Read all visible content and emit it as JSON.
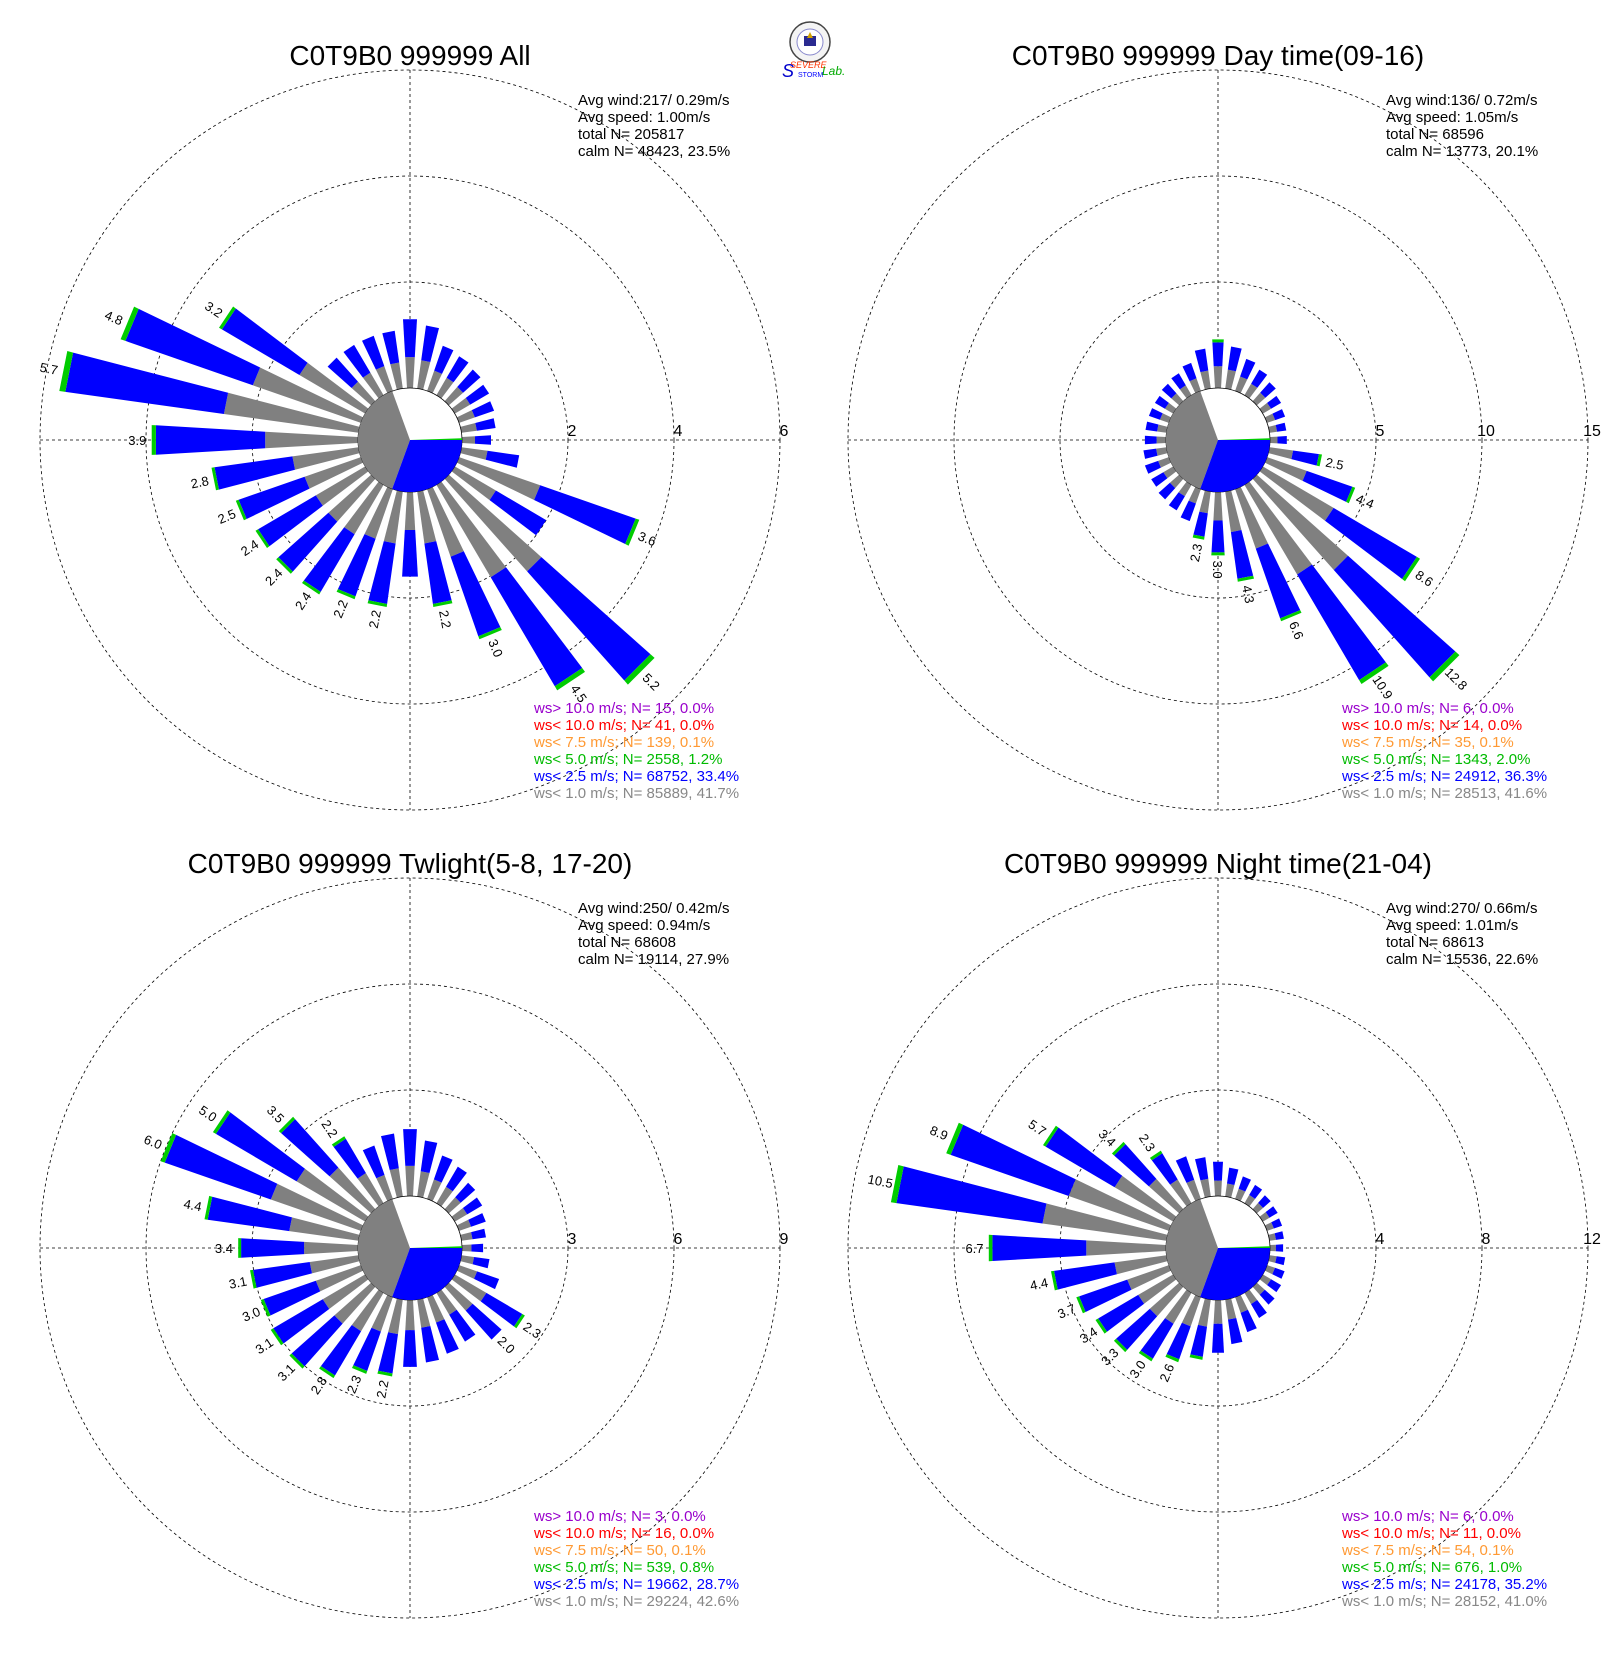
{
  "logo": {
    "text_top": "SEVERE",
    "text_bottom": "STORM",
    "text_lab": "Lab."
  },
  "chart_data": [
    {
      "type": "wind-rose",
      "title": "C0T9B0 999999 All",
      "ring_labels": [
        "2",
        "4",
        "6"
      ],
      "ring_max": 6,
      "info": [
        "Avg wind:217/ 0.29m/s",
        "Avg speed: 1.00m/s",
        "total N=      205817",
        "calm N=  48423,  23.5%"
      ],
      "calm_fraction": 0.235,
      "labeled_bars": [
        {
          "dir": 112.5,
          "value": 3.6
        },
        {
          "dir": 135,
          "value": 5.2
        },
        {
          "dir": 146.25,
          "value": 4.5
        },
        {
          "dir": 157.5,
          "value": 3.0
        },
        {
          "dir": 168.75,
          "value": 2.2
        },
        {
          "dir": 191.25,
          "value": 2.2
        },
        {
          "dir": 202.5,
          "value": 2.2
        },
        {
          "dir": 213.75,
          "value": 2.4
        },
        {
          "dir": 225,
          "value": 2.4
        },
        {
          "dir": 236.25,
          "value": 2.4
        },
        {
          "dir": 247.5,
          "value": 2.5
        },
        {
          "dir": 258.75,
          "value": 2.8
        },
        {
          "dir": 270,
          "value": 3.9
        },
        {
          "dir": 281.25,
          "value": 5.7
        },
        {
          "dir": 292.5,
          "value": 4.8
        },
        {
          "dir": 303.75,
          "value": 3.2
        }
      ],
      "other_bars": [
        [
          0,
          1.3
        ],
        [
          11.25,
          1.2
        ],
        [
          22.5,
          0.9
        ],
        [
          33.75,
          0.85
        ],
        [
          45,
          0.8
        ],
        [
          56.25,
          0.75
        ],
        [
          67.5,
          0.7
        ],
        [
          78.75,
          0.65
        ],
        [
          90,
          0.55
        ],
        [
          101.25,
          1.1
        ],
        [
          123.75,
          2.0
        ],
        [
          180,
          1.6
        ],
        [
          315,
          1.1
        ],
        [
          326.25,
          1.1
        ],
        [
          337.5,
          1.1
        ],
        [
          348.75,
          1.1
        ]
      ],
      "legend": [
        {
          "text": "ws> 10.0 m/s; N=    15,  0.0%",
          "color": "#9900cc"
        },
        {
          "text": "ws< 10.0 m/s; N=    41,  0.0%",
          "color": "#ff0000"
        },
        {
          "text": "ws<  7.5 m/s; N=   139,  0.1%",
          "color": "#ff9933"
        },
        {
          "text": "ws<  5.0 m/s; N=  2558,  1.2%",
          "color": "#00bb00"
        },
        {
          "text": "ws<  2.5 m/s; N= 68752, 33.4%",
          "color": "#0000ff"
        },
        {
          "text": "ws<  1.0 m/s; N= 85889, 41.7%",
          "color": "#888888"
        }
      ]
    },
    {
      "type": "wind-rose",
      "title": "C0T9B0 999999 Day time(09-16)",
      "ring_labels": [
        "5",
        "10",
        "15"
      ],
      "ring_max": 15,
      "info": [
        "Avg wind:136/ 0.72m/s",
        "Avg speed: 1.05m/s",
        "total N=      68596",
        "calm N=  13773,  20.1%"
      ],
      "calm_fraction": 0.201,
      "labeled_bars": [
        {
          "dir": 101.25,
          "value": 2.5
        },
        {
          "dir": 112.5,
          "value": 4.4
        },
        {
          "dir": 123.75,
          "value": 8.6
        },
        {
          "dir": 135,
          "value": 12.8
        },
        {
          "dir": 146.25,
          "value": 10.9
        },
        {
          "dir": 157.5,
          "value": 6.6
        },
        {
          "dir": 168.75,
          "value": 4.3
        },
        {
          "dir": 180,
          "value": 3.0
        },
        {
          "dir": 191.25,
          "value": 2.3
        }
      ],
      "other_bars": [
        [
          0,
          2.3
        ],
        [
          11.25,
          2.0
        ],
        [
          22.5,
          1.6
        ],
        [
          33.75,
          1.4
        ],
        [
          45,
          1.2
        ],
        [
          56.25,
          1.0
        ],
        [
          67.5,
          0.9
        ],
        [
          78.75,
          0.8
        ],
        [
          90,
          0.8
        ],
        [
          202.5,
          1.6
        ],
        [
          213.75,
          1.4
        ],
        [
          225,
          1.3
        ],
        [
          236.25,
          1.2
        ],
        [
          247.5,
          1.2
        ],
        [
          258.75,
          1.1
        ],
        [
          270,
          1.0
        ],
        [
          281.25,
          1.0
        ],
        [
          292.5,
          1.0
        ],
        [
          303.75,
          1.0
        ],
        [
          315,
          1.1
        ],
        [
          326.25,
          1.2
        ],
        [
          337.5,
          1.4
        ],
        [
          348.75,
          1.9
        ]
      ],
      "legend": [
        {
          "text": "ws> 10.0 m/s; N=     6,  0.0%",
          "color": "#9900cc"
        },
        {
          "text": "ws< 10.0 m/s; N=    14,  0.0%",
          "color": "#ff0000"
        },
        {
          "text": "ws<  7.5 m/s; N=    35,  0.1%",
          "color": "#ff9933"
        },
        {
          "text": "ws<  5.0 m/s; N=  1343,  2.0%",
          "color": "#00bb00"
        },
        {
          "text": "ws<  2.5 m/s; N= 24912, 36.3%",
          "color": "#0000ff"
        },
        {
          "text": "ws<  1.0 m/s; N= 28513, 41.6%",
          "color": "#888888"
        }
      ]
    },
    {
      "type": "wind-rose",
      "title": "C0T9B0 999999 Twlight(5-8, 17-20)",
      "ring_labels": [
        "3",
        "6",
        "9"
      ],
      "ring_max": 9,
      "info": [
        "Avg wind:250/ 0.42m/s",
        "Avg speed: 0.94m/s",
        "total N=      68608",
        "calm N=  19114,  27.9%"
      ],
      "calm_fraction": 0.279,
      "labeled_bars": [
        {
          "dir": 123.75,
          "value": 2.3
        },
        {
          "dir": 135,
          "value": 2.0
        },
        {
          "dir": 191.25,
          "value": 2.2
        },
        {
          "dir": 202.5,
          "value": 2.3
        },
        {
          "dir": 213.75,
          "value": 2.8
        },
        {
          "dir": 225,
          "value": 3.1
        },
        {
          "dir": 236.25,
          "value": 3.1
        },
        {
          "dir": 247.5,
          "value": 3.0
        },
        {
          "dir": 258.75,
          "value": 3.1
        },
        {
          "dir": 270,
          "value": 3.4
        },
        {
          "dir": 281.25,
          "value": 4.4
        },
        {
          "dir": 292.5,
          "value": 6.0
        },
        {
          "dir": 303.75,
          "value": 5.0
        },
        {
          "dir": 315,
          "value": 3.5
        },
        {
          "dir": 326.25,
          "value": 2.2
        }
      ],
      "other_bars": [
        [
          0,
          1.9
        ],
        [
          11.25,
          1.6
        ],
        [
          22.5,
          1.3
        ],
        [
          33.75,
          1.2
        ],
        [
          45,
          1.0
        ],
        [
          56.25,
          0.9
        ],
        [
          67.5,
          0.8
        ],
        [
          78.75,
          0.7
        ],
        [
          90,
          0.6
        ],
        [
          101.25,
          0.8
        ],
        [
          112.5,
          1.2
        ],
        [
          146.25,
          1.6
        ],
        [
          157.5,
          1.7
        ],
        [
          168.75,
          1.8
        ],
        [
          180,
          1.9
        ],
        [
          337.5,
          1.6
        ],
        [
          348.75,
          1.8
        ]
      ],
      "legend": [
        {
          "text": "ws> 10.0 m/s; N=     3,  0.0%",
          "color": "#9900cc"
        },
        {
          "text": "ws< 10.0 m/s; N=    16,  0.0%",
          "color": "#ff0000"
        },
        {
          "text": "ws<  7.5 m/s; N=    50,  0.1%",
          "color": "#ff9933"
        },
        {
          "text": "ws<  5.0 m/s; N=   539,  0.8%",
          "color": "#00bb00"
        },
        {
          "text": "ws<  2.5 m/s; N= 19662, 28.7%",
          "color": "#0000ff"
        },
        {
          "text": "ws<  1.0 m/s; N= 29224, 42.6%",
          "color": "#888888"
        }
      ]
    },
    {
      "type": "wind-rose",
      "title": "C0T9B0 999999 Night time(21-04)",
      "ring_labels": [
        "4",
        "8",
        "12"
      ],
      "ring_max": 12,
      "info": [
        "Avg wind:270/ 0.66m/s",
        "Avg speed: 1.01m/s",
        "total N=      68613",
        "calm N=  15536,  22.6%"
      ],
      "calm_fraction": 0.226,
      "labeled_bars": [
        {
          "dir": 202.5,
          "value": 2.6
        },
        {
          "dir": 213.75,
          "value": 3.0
        },
        {
          "dir": 225,
          "value": 3.3
        },
        {
          "dir": 236.25,
          "value": 3.4
        },
        {
          "dir": 247.5,
          "value": 3.7
        },
        {
          "dir": 258.75,
          "value": 4.4
        },
        {
          "dir": 270,
          "value": 6.7
        },
        {
          "dir": 281.25,
          "value": 10.5
        },
        {
          "dir": 292.5,
          "value": 8.9
        },
        {
          "dir": 303.75,
          "value": 5.7
        },
        {
          "dir": 315,
          "value": 3.4
        },
        {
          "dir": 326.25,
          "value": 2.3
        }
      ],
      "other_bars": [
        [
          0,
          1.3
        ],
        [
          11.25,
          1.1
        ],
        [
          22.5,
          0.9
        ],
        [
          33.75,
          0.8
        ],
        [
          45,
          0.7
        ],
        [
          56.25,
          0.65
        ],
        [
          67.5,
          0.6
        ],
        [
          78.75,
          0.55
        ],
        [
          90,
          0.5
        ],
        [
          101.25,
          0.6
        ],
        [
          112.5,
          0.7
        ],
        [
          123.75,
          0.8
        ],
        [
          135,
          0.9
        ],
        [
          146.25,
          1.1
        ],
        [
          157.5,
          1.4
        ],
        [
          168.75,
          1.7
        ],
        [
          180,
          2.0
        ],
        [
          191.25,
          2.3
        ],
        [
          337.5,
          1.7
        ],
        [
          348.75,
          1.5
        ]
      ],
      "legend": [
        {
          "text": "ws> 10.0 m/s; N=     6,  0.0%",
          "color": "#9900cc"
        },
        {
          "text": "ws< 10.0 m/s; N=    11,  0.0%",
          "color": "#ff0000"
        },
        {
          "text": "ws<  7.5 m/s; N=    54,  0.1%",
          "color": "#ff9933"
        },
        {
          "text": "ws<  5.0 m/s; N=   676,  1.0%",
          "color": "#00bb00"
        },
        {
          "text": "ws<  2.5 m/s; N= 24178, 35.2%",
          "color": "#0000ff"
        },
        {
          "text": "ws<  1.0 m/s; N= 28152, 41.0%",
          "color": "#888888"
        }
      ]
    }
  ],
  "colors": {
    "calm": "#808080",
    "low": "#808080",
    "mid": "#0000ff",
    "high": "#00cc00"
  }
}
